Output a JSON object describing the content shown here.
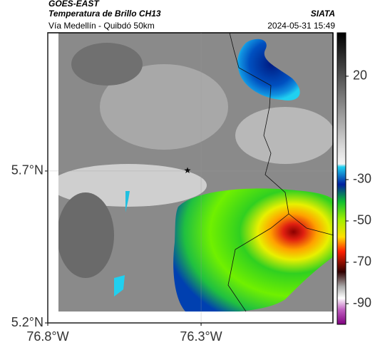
{
  "chart_data": {
    "type": "map",
    "title": "GOES-EAST",
    "subtitle": "Temperatura de Brillo CH13",
    "caption": "Vía Medellín - Quibdó 50km",
    "source": "SIATA",
    "timestamp": "2024-05-31 15:49",
    "xlim": [
      -76.8,
      -75.87
    ],
    "ylim": [
      5.2,
      6.155
    ],
    "xticks": [
      {
        "value": -76.8,
        "label": "76.8°W"
      },
      {
        "value": -76.3,
        "label": "76.3°W"
      }
    ],
    "yticks": [
      {
        "value": 5.2,
        "label": "5.2°N"
      },
      {
        "value": 5.7,
        "label": "5.7°N"
      }
    ],
    "clim": [
      -100,
      41
    ],
    "cticks": [
      20,
      -30,
      -50,
      -70,
      -90
    ],
    "grid": true
  }
}
